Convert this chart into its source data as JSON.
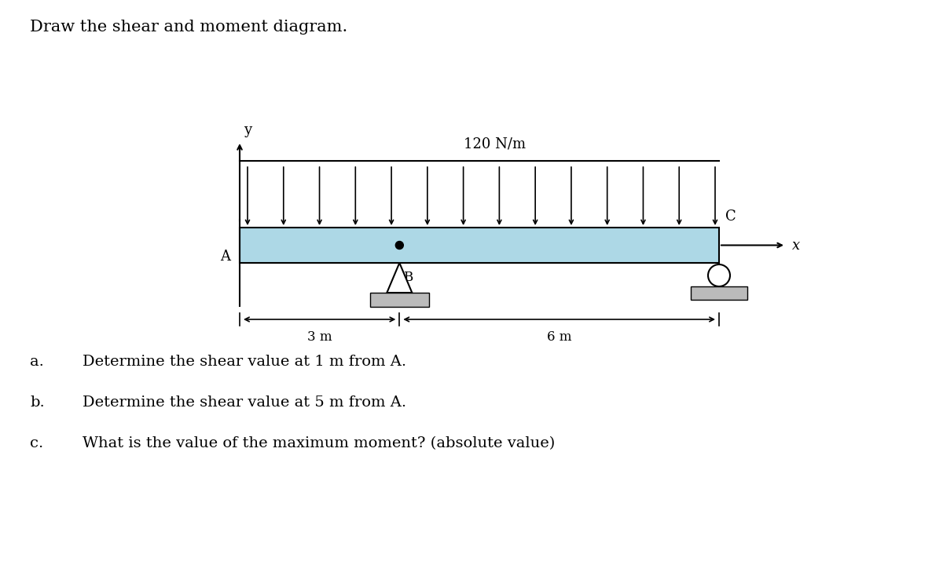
{
  "title": "Draw the shear and moment diagram.",
  "load_label": "120 N/m",
  "dim_B": "3 m",
  "dim_BC": "6 m",
  "label_A": "A",
  "label_B": "B",
  "label_C": "C",
  "label_x": "x",
  "label_y": "y",
  "beam_color": "#add8e6",
  "num_arrows": 14,
  "question_a": "Determine the shear value at 1 m from A.",
  "question_b": "Determine the shear value at 5 m from A.",
  "question_c": "What is the value of the maximum moment? (absolute value)",
  "background_color": "#ffffff",
  "load_label_color": "#000000",
  "title_fontsize": 15,
  "label_fontsize": 13,
  "question_fontsize": 14
}
